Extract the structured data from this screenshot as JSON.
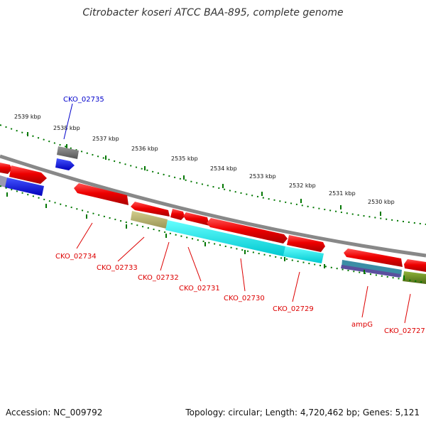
{
  "title": "Citrobacter koseri ATCC BAA-895, complete genome",
  "footer": {
    "accession": "Accession: NC_009792",
    "topology": "Topology: circular; Length: 4,720,462 bp; Genes: 5,121"
  },
  "scale_labels": [
    "2539 kbp",
    "2538 kbp",
    "2537 kbp",
    "2536 kbp",
    "2535 kbp",
    "2534 kbp",
    "2533 kbp",
    "2532 kbp",
    "2531 kbp",
    "2530 kbp"
  ],
  "gene_labels": [
    "CKO_02735",
    "CKO_02734",
    "CKO_02733",
    "CKO_02732",
    "CKO_02731",
    "CKO_02730",
    "CKO_02729",
    "ampG",
    "CKO_02727"
  ],
  "colors": {
    "forward_gene": "#ee0000",
    "label_red": "#dd0000",
    "label_blue": "#0000cc",
    "backbone": "#888888",
    "tick_green": "#007700",
    "cyan_feature": "#00eeee",
    "khaki_feature": "#b5b06a",
    "olive_feature": "#6b8e23",
    "blue_feature": "#0000ee",
    "gray_feature": "#666666"
  }
}
